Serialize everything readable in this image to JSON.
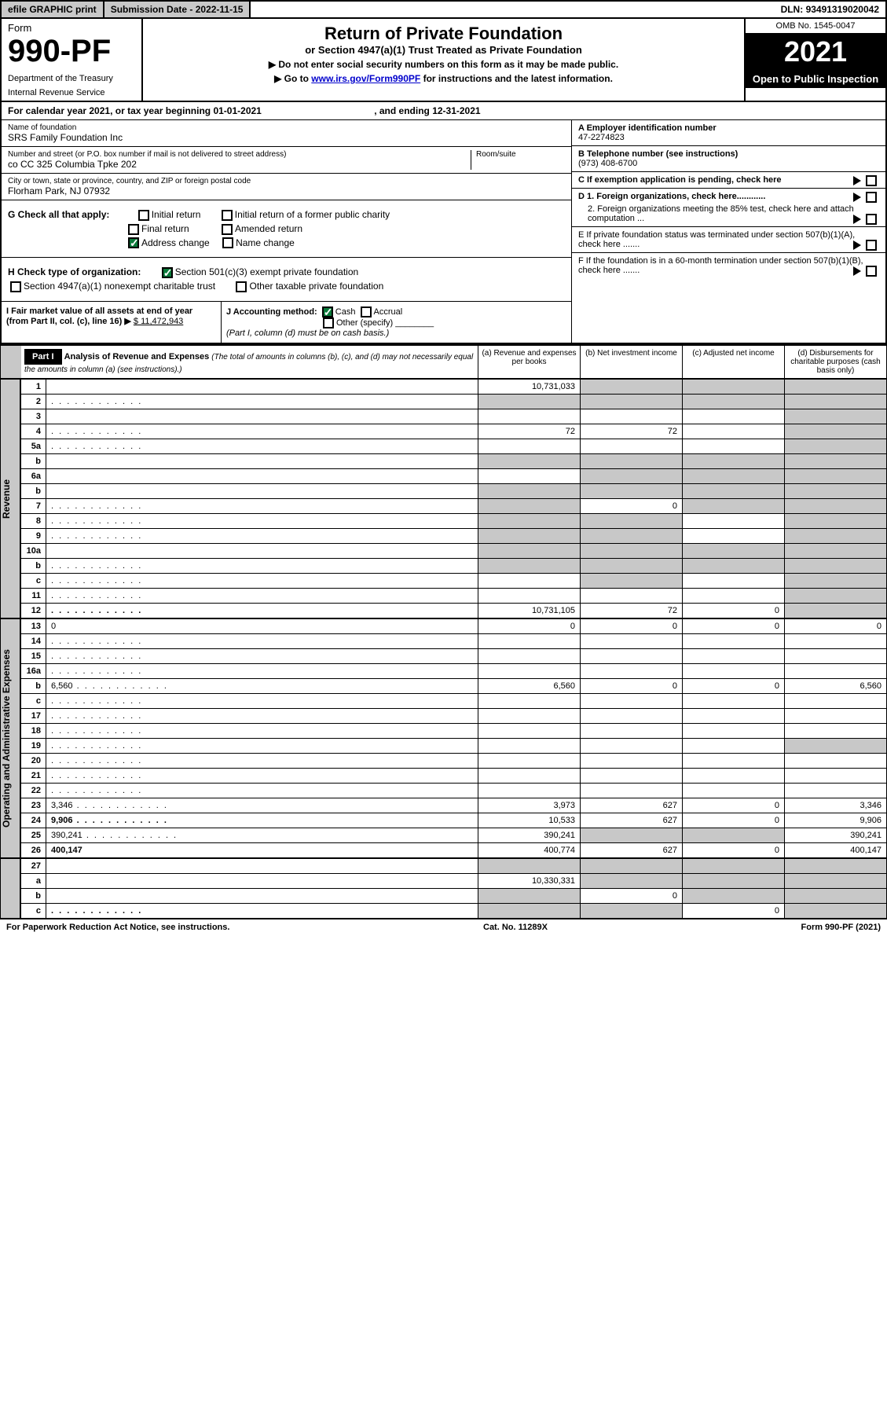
{
  "topbar": {
    "efile": "efile GRAPHIC print",
    "subdate_label": "Submission Date - ",
    "subdate": "2022-11-15",
    "dln_label": "DLN: ",
    "dln": "93491319020042"
  },
  "header": {
    "form_word": "Form",
    "form_num": "990-PF",
    "dept": "Department of the Treasury",
    "irs": "Internal Revenue Service",
    "title": "Return of Private Foundation",
    "subtitle": "or Section 4947(a)(1) Trust Treated as Private Foundation",
    "instr1": "▶ Do not enter social security numbers on this form as it may be made public.",
    "instr2_pre": "▶ Go to ",
    "instr2_link": "www.irs.gov/Form990PF",
    "instr2_post": " for instructions and the latest information.",
    "omb": "OMB No. 1545-0047",
    "year": "2021",
    "open": "Open to Public Inspection"
  },
  "calendar": {
    "text_pre": "For calendar year 2021, or tax year beginning ",
    "begin": "01-01-2021",
    "text_mid": ", and ending ",
    "end": "12-31-2021"
  },
  "name_block": {
    "label": "Name of foundation",
    "value": "SRS Family Foundation Inc",
    "addr_label": "Number and street (or P.O. box number if mail is not delivered to street address)",
    "addr": "co CC 325 Columbia Tpke 202",
    "room_label": "Room/suite",
    "city_label": "City or town, state or province, country, and ZIP or foreign postal code",
    "city": "Florham Park, NJ  07932"
  },
  "right_block": {
    "a_label": "A Employer identification number",
    "a_val": "47-2274823",
    "b_label": "B Telephone number (see instructions)",
    "b_val": "(973) 408-6700",
    "c_label": "C If exemption application is pending, check here",
    "d1": "D 1. Foreign organizations, check here............",
    "d2": "2. Foreign organizations meeting the 85% test, check here and attach computation ...",
    "e": "E  If private foundation status was terminated under section 507(b)(1)(A), check here .......",
    "f": "F  If the foundation is in a 60-month termination under section 507(b)(1)(B), check here .......",
    "arrow": " ▶"
  },
  "sec_g": {
    "g_label": "G Check all that apply:",
    "opts": {
      "initial": "Initial return",
      "initial_former": "Initial return of a former public charity",
      "final": "Final return",
      "amended": "Amended return",
      "address": "Address change",
      "name": "Name change"
    },
    "h_label": "H Check type of organization:",
    "h1": "Section 501(c)(3) exempt private foundation",
    "h2": "Section 4947(a)(1) nonexempt charitable trust",
    "h3": "Other taxable private foundation",
    "i_label": "I Fair market value of all assets at end of year (from Part II, col. (c), line 16) ▶",
    "i_val": "$  11,472,943",
    "j_label": "J Accounting method:",
    "j_cash": "Cash",
    "j_accrual": "Accrual",
    "j_other": "Other (specify)",
    "j_note": "(Part I, column (d) must be on cash basis.)"
  },
  "part1": {
    "label": "Part I",
    "title": "Analysis of Revenue and Expenses",
    "note": " (The total of amounts in columns (b), (c), and (d) may not necessarily equal the amounts in column (a) (see instructions).)",
    "cols": {
      "a": "(a)    Revenue and expenses per books",
      "b": "(b)    Net investment income",
      "c": "(c)    Adjusted net income",
      "d": "(d)    Disbursements for charitable purposes (cash basis only)"
    }
  },
  "rows_revenue": [
    {
      "n": "1",
      "d": "",
      "a": "10,731,033",
      "b": "",
      "c": "",
      "shade_b": true,
      "shade_c": true,
      "shade_d": true
    },
    {
      "n": "2",
      "d": "",
      "a": "",
      "b": "",
      "c": "",
      "shade_a": true,
      "shade_b": true,
      "shade_c": true,
      "shade_d": true,
      "dots": true
    },
    {
      "n": "3",
      "d": "",
      "a": "",
      "b": "",
      "c": "",
      "shade_d": true
    },
    {
      "n": "4",
      "d": "",
      "a": "72",
      "b": "72",
      "c": "",
      "shade_d": true,
      "dots": true
    },
    {
      "n": "5a",
      "d": "",
      "a": "",
      "b": "",
      "c": "",
      "shade_d": true,
      "dots": true
    },
    {
      "n": "b",
      "d": "",
      "a": "",
      "b": "",
      "c": "",
      "shade_a": true,
      "shade_b": true,
      "shade_c": true,
      "shade_d": true
    },
    {
      "n": "6a",
      "d": "",
      "a": "",
      "b": "",
      "c": "",
      "shade_b": true,
      "shade_c": true,
      "shade_d": true
    },
    {
      "n": "b",
      "d": "",
      "a": "",
      "b": "",
      "c": "",
      "shade_a": true,
      "shade_b": true,
      "shade_c": true,
      "shade_d": true
    },
    {
      "n": "7",
      "d": "",
      "a": "",
      "b": "0",
      "c": "",
      "shade_a": true,
      "shade_c": true,
      "shade_d": true,
      "dots": true
    },
    {
      "n": "8",
      "d": "",
      "a": "",
      "b": "",
      "c": "",
      "shade_a": true,
      "shade_b": true,
      "shade_d": true,
      "dots": true
    },
    {
      "n": "9",
      "d": "",
      "a": "",
      "b": "",
      "c": "",
      "shade_a": true,
      "shade_b": true,
      "shade_d": true,
      "dots": true
    },
    {
      "n": "10a",
      "d": "",
      "a": "",
      "b": "",
      "c": "",
      "shade_a": true,
      "shade_b": true,
      "shade_c": true,
      "shade_d": true
    },
    {
      "n": "b",
      "d": "",
      "a": "",
      "b": "",
      "c": "",
      "shade_a": true,
      "shade_b": true,
      "shade_c": true,
      "shade_d": true,
      "dots": true
    },
    {
      "n": "c",
      "d": "",
      "a": "",
      "b": "",
      "c": "",
      "shade_b": true,
      "shade_d": true,
      "dots": true
    },
    {
      "n": "11",
      "d": "",
      "a": "",
      "b": "",
      "c": "",
      "shade_d": true,
      "dots": true
    },
    {
      "n": "12",
      "d": "",
      "a": "10,731,105",
      "b": "72",
      "c": "0",
      "bold": true,
      "shade_d": true,
      "dots": true
    }
  ],
  "rows_expenses": [
    {
      "n": "13",
      "d": "0",
      "a": "0",
      "b": "0",
      "c": "0"
    },
    {
      "n": "14",
      "d": "",
      "a": "",
      "b": "",
      "c": "",
      "dots": true
    },
    {
      "n": "15",
      "d": "",
      "a": "",
      "b": "",
      "c": "",
      "dots": true
    },
    {
      "n": "16a",
      "d": "",
      "a": "",
      "b": "",
      "c": "",
      "dots": true
    },
    {
      "n": "b",
      "d": "6,560",
      "a": "6,560",
      "b": "0",
      "c": "0",
      "dots": true
    },
    {
      "n": "c",
      "d": "",
      "a": "",
      "b": "",
      "c": "",
      "dots": true
    },
    {
      "n": "17",
      "d": "",
      "a": "",
      "b": "",
      "c": "",
      "dots": true
    },
    {
      "n": "18",
      "d": "",
      "a": "",
      "b": "",
      "c": "",
      "dots": true
    },
    {
      "n": "19",
      "d": "",
      "a": "",
      "b": "",
      "c": "",
      "shade_d": true,
      "dots": true
    },
    {
      "n": "20",
      "d": "",
      "a": "",
      "b": "",
      "c": "",
      "dots": true
    },
    {
      "n": "21",
      "d": "",
      "a": "",
      "b": "",
      "c": "",
      "dots": true
    },
    {
      "n": "22",
      "d": "",
      "a": "",
      "b": "",
      "c": "",
      "dots": true
    },
    {
      "n": "23",
      "d": "3,346",
      "a": "3,973",
      "b": "627",
      "c": "0",
      "dots": true
    },
    {
      "n": "24",
      "d": "9,906",
      "a": "10,533",
      "b": "627",
      "c": "0",
      "bold": true,
      "dots": true
    },
    {
      "n": "25",
      "d": "390,241",
      "a": "390,241",
      "b": "",
      "c": "",
      "shade_b": true,
      "shade_c": true,
      "dots": true
    },
    {
      "n": "26",
      "d": "400,147",
      "a": "400,774",
      "b": "627",
      "c": "0",
      "bold": true
    }
  ],
  "rows_bottom": [
    {
      "n": "27",
      "d": "",
      "a": "",
      "b": "",
      "c": "",
      "shade_a": true,
      "shade_b": true,
      "shade_c": true,
      "shade_d": true
    },
    {
      "n": "a",
      "d": "",
      "a": "10,330,331",
      "b": "",
      "c": "",
      "bold": true,
      "shade_b": true,
      "shade_c": true,
      "shade_d": true
    },
    {
      "n": "b",
      "d": "",
      "a": "",
      "b": "0",
      "c": "",
      "bold": true,
      "shade_a": true,
      "shade_c": true,
      "shade_d": true
    },
    {
      "n": "c",
      "d": "",
      "a": "",
      "b": "",
      "c": "0",
      "bold": true,
      "shade_a": true,
      "shade_b": true,
      "shade_d": true,
      "dots": true
    }
  ],
  "side_labels": {
    "revenue": "Revenue",
    "expenses": "Operating and Administrative Expenses"
  },
  "footer": {
    "left": "For Paperwork Reduction Act Notice, see instructions.",
    "mid": "Cat. No. 11289X",
    "right": "Form 990-PF (2021)"
  }
}
